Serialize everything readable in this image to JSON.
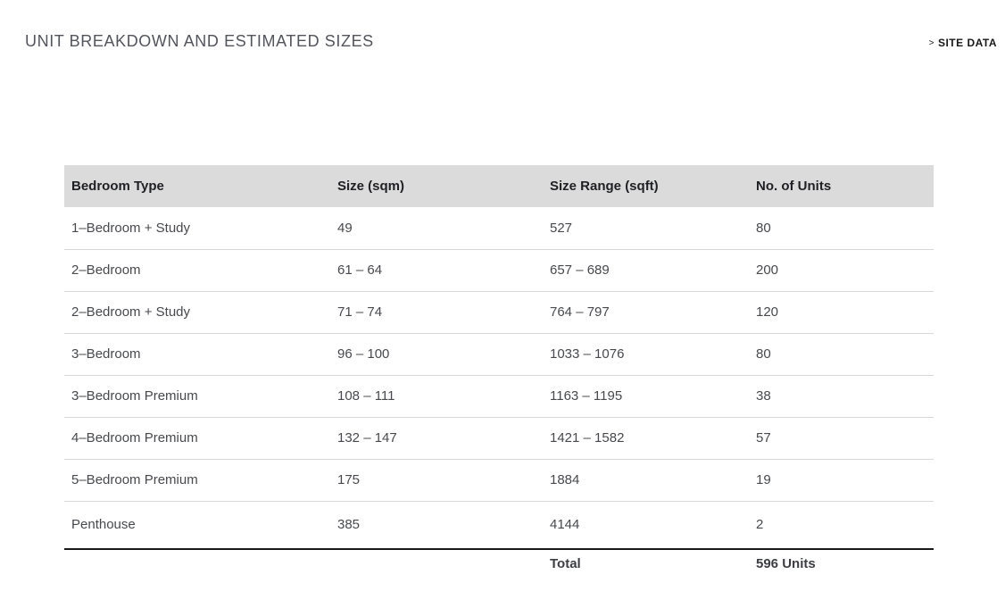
{
  "page": {
    "title": "UNIT BREAKDOWN AND ESTIMATED SIZES",
    "link": {
      "chevron": ">",
      "label": "SITE DATA"
    }
  },
  "table": {
    "headers": [
      "Bedroom Type",
      "Size (sqm)",
      "Size Range (sqft)",
      "No. of Units"
    ],
    "rows": [
      [
        "1–Bedroom + Study",
        "49",
        "527",
        "80"
      ],
      [
        "2–Bedroom",
        "61 – 64",
        "657 – 689",
        "200"
      ],
      [
        "2–Bedroom + Study",
        "71 – 74",
        "764 – 797",
        "120"
      ],
      [
        "3–Bedroom",
        "96 – 100",
        "1033 – 1076",
        "80"
      ],
      [
        "3–Bedroom Premium",
        "108 – 111",
        "1163 – 1195",
        "38"
      ],
      [
        "4–Bedroom Premium",
        "132 – 147",
        "1421 – 1582",
        "57"
      ],
      [
        "5–Bedroom Premium",
        "175",
        "1884",
        "19"
      ],
      [
        "Penthouse",
        "385",
        "4144",
        "2"
      ]
    ],
    "total": {
      "label": "Total",
      "value": "596 Units"
    }
  },
  "colors": {
    "header_bg": "#dbdbdb",
    "header_text": "#1f2023",
    "body_text": "#47494d",
    "title_text": "#53555c",
    "separator_line": "#d8d8d8",
    "total_rule": "#1a1a1a",
    "link_text": "#17181a",
    "page_bg": "#ffffff"
  }
}
